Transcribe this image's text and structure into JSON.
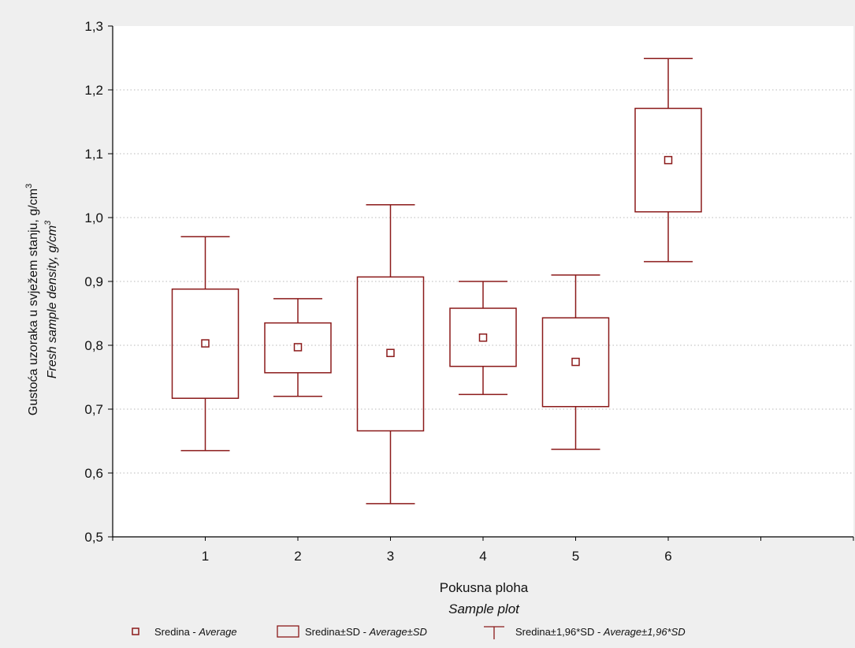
{
  "chart_data": {
    "type": "box",
    "x_label_line1": "Pokusna ploha",
    "x_label_line2": "Sample plot",
    "y_label_line1": "Gustoća uzoraka u svježem stanju, g/cm",
    "y_label_line2": "Fresh sample density, g/cm",
    "y_label_superscript": "3",
    "ylim": [
      0.5,
      1.3
    ],
    "y_ticks": [
      "0,5",
      "0,6",
      "0,7",
      "0,8",
      "0,9",
      "1,0",
      "1,1",
      "1,2",
      "1,3"
    ],
    "x_range": [
      0,
      8
    ],
    "categories": [
      "1",
      "2",
      "3",
      "4",
      "5",
      "6"
    ],
    "grid": "horizontal dotted",
    "colors": {
      "series": "#8b1a1a",
      "axis": "#000000",
      "grid": "#b8b8b8"
    },
    "series": [
      {
        "category": "1",
        "mean": 0.803,
        "sd_low": 0.717,
        "sd_high": 0.888,
        "ci_low": 0.635,
        "ci_high": 0.97
      },
      {
        "category": "2",
        "mean": 0.797,
        "sd_low": 0.757,
        "sd_high": 0.835,
        "ci_low": 0.72,
        "ci_high": 0.873
      },
      {
        "category": "3",
        "mean": 0.788,
        "sd_low": 0.666,
        "sd_high": 0.907,
        "ci_low": 0.552,
        "ci_high": 1.02
      },
      {
        "category": "4",
        "mean": 0.812,
        "sd_low": 0.767,
        "sd_high": 0.858,
        "ci_low": 0.723,
        "ci_high": 0.9
      },
      {
        "category": "5",
        "mean": 0.774,
        "sd_low": 0.704,
        "sd_high": 0.843,
        "ci_low": 0.637,
        "ci_high": 0.91
      },
      {
        "category": "6",
        "mean": 1.09,
        "sd_low": 1.009,
        "sd_high": 1.171,
        "ci_low": 0.931,
        "ci_high": 1.249
      }
    ],
    "legend": {
      "placement": "bottom",
      "mean": {
        "label": "Sredina - ",
        "label_italic": "Average"
      },
      "sd": {
        "label": "Sredina±SD - ",
        "label_italic": "Average±SD"
      },
      "ci": {
        "label": "Sredina±1,96*SD - ",
        "label_italic": "Average±1,96*SD"
      }
    }
  }
}
